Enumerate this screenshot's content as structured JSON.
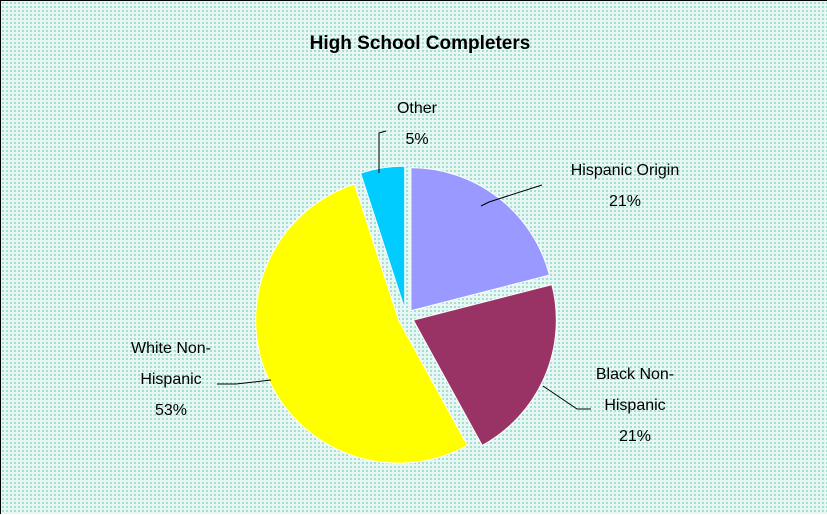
{
  "chart_data": {
    "type": "pie",
    "title": "High School Completers",
    "slices": [
      {
        "label": [
          "Hispanic Origin",
          "21%"
        ],
        "value": 21,
        "color": "#9999ff"
      },
      {
        "label": [
          "Black Non-",
          "Hispanic",
          "21%"
        ],
        "value": 21,
        "color": "#993366"
      },
      {
        "label": [
          "White Non-",
          "Hispanic",
          "53%"
        ],
        "value": 53,
        "color": "#ffff00"
      },
      {
        "label": [
          "Other",
          "5%"
        ],
        "value": 5,
        "color": "#00ccff"
      }
    ],
    "exploded": true,
    "background": "#e6f7f4"
  }
}
